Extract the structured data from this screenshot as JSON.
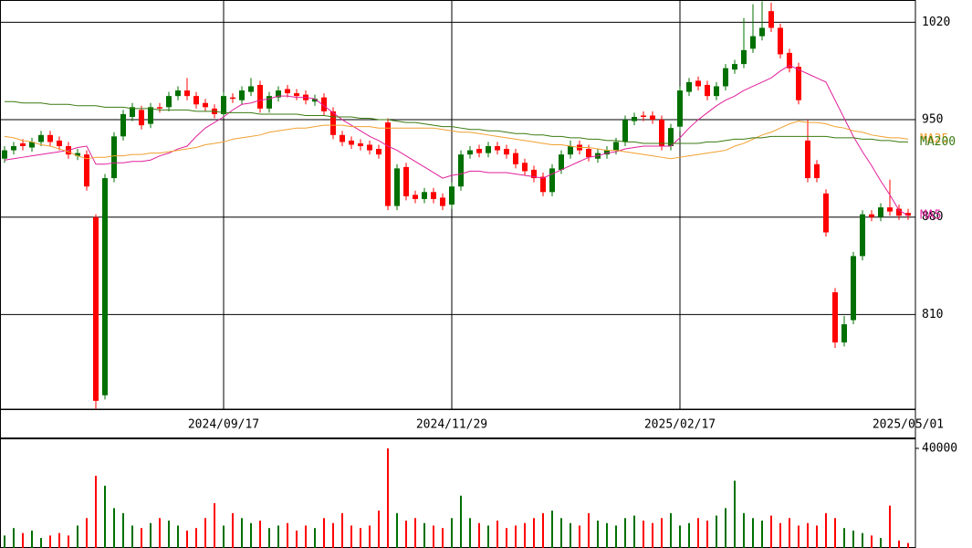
{
  "chart_data": [
    {
      "type": "candlestick",
      "categories": [
        null,
        null,
        null,
        null,
        null,
        null,
        null,
        null,
        null,
        null,
        null,
        null,
        null,
        null,
        null,
        null,
        null,
        null,
        null,
        null,
        null,
        null,
        null,
        null,
        "2024/09/17",
        null,
        null,
        null,
        null,
        null,
        null,
        null,
        null,
        null,
        null,
        null,
        null,
        null,
        null,
        null,
        null,
        null,
        null,
        null,
        null,
        null,
        null,
        null,
        null,
        "2024/11/29",
        null,
        null,
        null,
        null,
        null,
        null,
        null,
        null,
        null,
        null,
        null,
        null,
        null,
        null,
        null,
        null,
        null,
        null,
        null,
        null,
        null,
        null,
        null,
        null,
        "2025/02/17",
        null,
        null,
        null,
        null,
        null,
        null,
        null,
        null,
        null,
        null,
        null,
        null,
        null,
        null,
        null,
        null,
        null,
        null,
        null,
        null,
        null,
        null,
        null,
        null,
        "2025/05/01"
      ],
      "open": [
        922,
        928,
        933,
        930,
        934,
        939,
        935,
        931,
        924,
        925,
        880,
        752,
        908,
        938,
        952,
        957,
        947,
        959,
        959,
        967,
        971,
        967,
        962,
        958,
        954,
        966,
        964,
        970,
        975,
        958,
        966,
        972,
        969,
        968,
        963,
        966,
        956,
        939,
        935,
        933,
        932,
        929,
        948,
        888,
        916,
        896,
        893,
        898,
        894,
        889,
        902,
        925,
        929,
        926,
        931,
        929,
        926,
        919,
        914,
        909,
        898,
        914,
        925,
        932,
        929,
        922,
        925,
        928,
        934,
        949,
        953,
        953,
        950,
        931,
        945,
        970,
        978,
        975,
        967,
        974,
        986,
        990,
        1001,
        1010,
        1028,
        1016,
        998,
        988,
        935,
        918,
        897,
        826,
        790,
        806,
        852,
        882,
        880,
        887,
        886,
        883
      ],
      "high": [
        931,
        934,
        936,
        937,
        942,
        942,
        938,
        934,
        929,
        928,
        882,
        911,
        941,
        957,
        962,
        960,
        962,
        962,
        970,
        974,
        980,
        970,
        965,
        961,
        970,
        969,
        974,
        980,
        978,
        970,
        974,
        975,
        972,
        971,
        968,
        969,
        959,
        942,
        938,
        936,
        935,
        932,
        951,
        918,
        919,
        899,
        901,
        901,
        897,
        905,
        928,
        931,
        932,
        934,
        934,
        932,
        929,
        922,
        917,
        912,
        918,
        928,
        935,
        935,
        932,
        929,
        931,
        937,
        953,
        955,
        956,
        956,
        953,
        947,
        974,
        980,
        981,
        978,
        977,
        990,
        993,
        1023,
        1033,
        1035,
        1034,
        1019,
        1001,
        991,
        950,
        921,
        900,
        829,
        809,
        855,
        885,
        885,
        890,
        907,
        889,
        886
      ],
      "low": [
        919,
        925,
        928,
        927,
        931,
        931,
        928,
        922,
        921,
        899,
        742,
        749,
        905,
        935,
        949,
        943,
        944,
        955,
        956,
        964,
        964,
        958,
        956,
        951,
        951,
        962,
        961,
        967,
        955,
        955,
        963,
        966,
        964,
        961,
        960,
        953,
        936,
        931,
        929,
        928,
        925,
        922,
        885,
        885,
        892,
        890,
        890,
        890,
        885,
        886,
        899,
        922,
        923,
        923,
        925,
        922,
        915,
        910,
        905,
        895,
        895,
        911,
        922,
        925,
        920,
        919,
        922,
        925,
        931,
        946,
        949,
        947,
        928,
        928,
        942,
        967,
        971,
        964,
        964,
        971,
        983,
        987,
        998,
        1007,
        1013,
        994,
        984,
        961,
        905,
        905,
        866,
        786,
        787,
        803,
        849,
        877,
        877,
        881,
        878,
        878
      ],
      "close": [
        928,
        931,
        931,
        934,
        939,
        934,
        931,
        925,
        926,
        902,
        748,
        908,
        938,
        954,
        959,
        946,
        959,
        958,
        967,
        971,
        967,
        961,
        959,
        954,
        967,
        965,
        971,
        974,
        958,
        967,
        971,
        969,
        967,
        964,
        965,
        956,
        939,
        934,
        932,
        931,
        928,
        925,
        888,
        915,
        895,
        893,
        898,
        893,
        888,
        902,
        925,
        928,
        926,
        931,
        928,
        925,
        918,
        913,
        908,
        898,
        915,
        925,
        931,
        928,
        923,
        926,
        928,
        934,
        950,
        952,
        952,
        950,
        931,
        944,
        971,
        977,
        974,
        967,
        974,
        987,
        990,
        1000,
        1010,
        1016,
        1016,
        997,
        987,
        964,
        908,
        908,
        869,
        790,
        803,
        852,
        882,
        880,
        887,
        884,
        881,
        881
      ],
      "up_color": "#007000",
      "down_color": "#ff0000",
      "ylim": [
        742,
        1036
      ],
      "yticks": [
        810,
        880,
        950,
        1020
      ],
      "grid": true,
      "series": [
        {
          "name": "MA5",
          "color": "#e0209a",
          "values": [
            921,
            922,
            923,
            924,
            925,
            926,
            927,
            928,
            930,
            931,
            918,
            918,
            919,
            919,
            920,
            920,
            921,
            924,
            926,
            929,
            931,
            938,
            944,
            948,
            952,
            957,
            961,
            962,
            964,
            965,
            967,
            967,
            966,
            966,
            965,
            960,
            955,
            950,
            946,
            942,
            938,
            935,
            931,
            928,
            924,
            920,
            916,
            912,
            908,
            910,
            911,
            913,
            913,
            912,
            912,
            912,
            911,
            910,
            909,
            908,
            911,
            914,
            917,
            920,
            923,
            924,
            926,
            927,
            929,
            930,
            931,
            931,
            931,
            931,
            937,
            944,
            950,
            955,
            960,
            964,
            967,
            971,
            974,
            977,
            980,
            985,
            989,
            986,
            983,
            980,
            977,
            964,
            951,
            938,
            927,
            917,
            906,
            896,
            885,
            881
          ]
        },
        {
          "name": "MA25",
          "color": "#f0a030",
          "values": [
            938,
            937,
            935,
            934,
            932,
            931,
            929,
            927,
            924,
            922,
            923,
            923,
            924,
            924,
            925,
            925,
            926,
            926,
            927,
            928,
            929,
            930,
            932,
            933,
            934,
            936,
            937,
            938,
            939,
            941,
            942,
            943,
            944,
            944,
            945,
            946,
            946,
            946,
            945,
            945,
            945,
            944,
            944,
            944,
            944,
            944,
            944,
            944,
            943,
            942,
            941,
            941,
            940,
            939,
            938,
            937,
            936,
            935,
            934,
            933,
            932,
            932,
            931,
            930,
            930,
            929,
            928,
            928,
            927,
            926,
            925,
            924,
            923,
            922,
            923,
            924,
            925,
            926,
            927,
            928,
            931,
            933,
            936,
            939,
            941,
            944,
            947,
            949,
            948,
            948,
            947,
            945,
            944,
            942,
            941,
            939,
            938,
            937,
            937,
            936
          ]
        },
        {
          "name": "MA200",
          "color": "#3a7a10",
          "values": [
            963,
            963,
            962,
            962,
            962,
            961,
            961,
            961,
            960,
            960,
            960,
            959,
            959,
            959,
            958,
            958,
            958,
            957,
            957,
            957,
            957,
            956,
            956,
            956,
            955,
            955,
            955,
            955,
            954,
            954,
            954,
            954,
            954,
            953,
            953,
            953,
            952,
            952,
            952,
            951,
            951,
            950,
            950,
            949,
            948,
            948,
            947,
            946,
            945,
            945,
            944,
            943,
            943,
            942,
            942,
            941,
            940,
            940,
            939,
            939,
            938,
            938,
            937,
            937,
            936,
            936,
            935,
            935,
            934,
            934,
            933,
            933,
            933,
            933,
            933,
            933,
            933,
            934,
            934,
            935,
            936,
            936,
            937,
            937,
            938,
            938,
            938,
            938,
            938,
            938,
            938,
            937,
            937,
            937,
            936,
            936,
            935,
            935,
            934,
            934
          ]
        }
      ]
    },
    {
      "type": "bar",
      "values": [
        5000,
        8000,
        6000,
        7000,
        4000,
        5000,
        6000,
        5000,
        9000,
        12000,
        29000,
        25000,
        16000,
        14000,
        9000,
        8000,
        10000,
        12000,
        11000,
        9000,
        7000,
        8000,
        12000,
        18000,
        9000,
        14000,
        12000,
        10000,
        11000,
        8000,
        9000,
        10000,
        7000,
        9000,
        8000,
        12000,
        10000,
        14000,
        9000,
        8000,
        9000,
        15000,
        40000,
        14000,
        11000,
        12000,
        10000,
        9000,
        8000,
        12000,
        21000,
        12000,
        10000,
        9000,
        11000,
        8000,
        9000,
        10000,
        12000,
        14000,
        15000,
        12000,
        10000,
        9000,
        14000,
        11000,
        10000,
        9000,
        12000,
        13000,
        11000,
        10000,
        12000,
        14000,
        9000,
        10000,
        12000,
        11000,
        13000,
        16000,
        27000,
        14000,
        12000,
        11000,
        13000,
        10000,
        12000,
        9000,
        10000,
        9000,
        14000,
        12000,
        8000,
        7000,
        6000,
        5000,
        4000,
        17000,
        3000,
        2000
      ],
      "ylim": [
        0,
        44000
      ],
      "yticks": [
        40000
      ]
    }
  ]
}
